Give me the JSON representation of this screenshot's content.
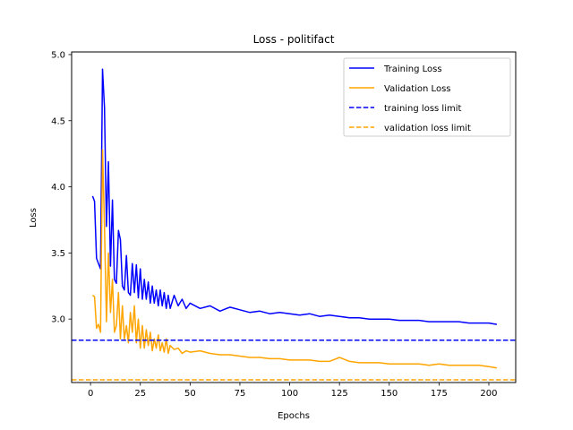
{
  "chart_data": {
    "type": "line",
    "title": "Loss - politifact",
    "xlabel": "Epochs",
    "ylabel": "Loss",
    "xlim": [
      -9.5,
      213.5
    ],
    "ylim": [
      2.52,
      5.02
    ],
    "xticks": [
      0,
      25,
      50,
      75,
      100,
      125,
      150,
      175,
      200
    ],
    "yticks": [
      3.0,
      3.5,
      4.0,
      4.5,
      5.0
    ],
    "xtick_labels": [
      "0",
      "25",
      "50",
      "75",
      "100",
      "125",
      "150",
      "175",
      "200"
    ],
    "ytick_labels": [
      "3.0",
      "3.5",
      "4.0",
      "4.5",
      "5.0"
    ],
    "grid": false,
    "legend_position": "top-right",
    "series": [
      {
        "name": "Training Loss",
        "color": "#0000ff",
        "style": "solid",
        "x": [
          1,
          2,
          3,
          4,
          5,
          6,
          7,
          8,
          9,
          10,
          11,
          12,
          13,
          14,
          15,
          16,
          17,
          18,
          19,
          20,
          21,
          22,
          23,
          24,
          25,
          26,
          27,
          28,
          29,
          30,
          31,
          32,
          33,
          34,
          35,
          36,
          37,
          38,
          39,
          40,
          42,
          44,
          46,
          48,
          50,
          55,
          60,
          65,
          70,
          75,
          80,
          85,
          90,
          95,
          100,
          105,
          110,
          115,
          120,
          125,
          130,
          135,
          140,
          145,
          150,
          155,
          160,
          165,
          170,
          175,
          180,
          185,
          190,
          195,
          200,
          204
        ],
        "y": [
          3.93,
          3.89,
          3.46,
          3.42,
          3.38,
          4.89,
          4.6,
          3.7,
          4.19,
          3.4,
          3.9,
          3.3,
          3.27,
          3.67,
          3.6,
          3.25,
          3.22,
          3.48,
          3.2,
          3.18,
          3.42,
          3.2,
          3.41,
          3.16,
          3.38,
          3.15,
          3.3,
          3.15,
          3.28,
          3.12,
          3.25,
          3.12,
          3.22,
          3.1,
          3.22,
          3.1,
          3.2,
          3.08,
          3.18,
          3.08,
          3.18,
          3.1,
          3.15,
          3.08,
          3.12,
          3.08,
          3.1,
          3.06,
          3.09,
          3.07,
          3.05,
          3.06,
          3.04,
          3.05,
          3.04,
          3.03,
          3.04,
          3.02,
          3.03,
          3.02,
          3.01,
          3.01,
          3.0,
          3.0,
          3.0,
          2.99,
          2.99,
          2.99,
          2.98,
          2.98,
          2.98,
          2.98,
          2.97,
          2.97,
          2.97,
          2.96
        ]
      },
      {
        "name": "Validation Loss",
        "color": "#ffa500",
        "style": "solid",
        "x": [
          1,
          2,
          3,
          4,
          5,
          6,
          7,
          8,
          9,
          10,
          11,
          12,
          13,
          14,
          15,
          16,
          17,
          18,
          19,
          20,
          21,
          22,
          23,
          24,
          25,
          26,
          27,
          28,
          29,
          30,
          31,
          32,
          33,
          34,
          35,
          36,
          37,
          38,
          39,
          40,
          42,
          44,
          46,
          48,
          50,
          55,
          60,
          65,
          70,
          75,
          80,
          85,
          90,
          95,
          100,
          105,
          110,
          115,
          120,
          125,
          130,
          135,
          140,
          145,
          150,
          155,
          160,
          165,
          170,
          175,
          180,
          185,
          190,
          195,
          200,
          204
        ],
        "y": [
          3.18,
          3.17,
          2.93,
          2.96,
          2.9,
          4.28,
          3.7,
          2.98,
          3.5,
          3.05,
          3.3,
          2.9,
          2.95,
          3.2,
          2.85,
          3.1,
          2.85,
          2.95,
          2.82,
          3.05,
          2.9,
          3.1,
          2.82,
          3.0,
          2.78,
          2.95,
          2.78,
          2.92,
          2.8,
          2.9,
          2.76,
          2.85,
          2.78,
          2.88,
          2.76,
          2.82,
          2.75,
          2.85,
          2.74,
          2.8,
          2.77,
          2.78,
          2.74,
          2.76,
          2.75,
          2.76,
          2.74,
          2.73,
          2.73,
          2.72,
          2.71,
          2.71,
          2.7,
          2.7,
          2.69,
          2.69,
          2.69,
          2.68,
          2.68,
          2.71,
          2.68,
          2.67,
          2.67,
          2.67,
          2.66,
          2.66,
          2.66,
          2.66,
          2.65,
          2.66,
          2.65,
          2.65,
          2.65,
          2.65,
          2.64,
          2.63
        ]
      },
      {
        "name": "training loss limit",
        "color": "#0000ff",
        "style": "dashed",
        "hline": 2.84
      },
      {
        "name": "validation loss limit",
        "color": "#ffa500",
        "style": "dashed",
        "hline": 2.54
      }
    ]
  }
}
